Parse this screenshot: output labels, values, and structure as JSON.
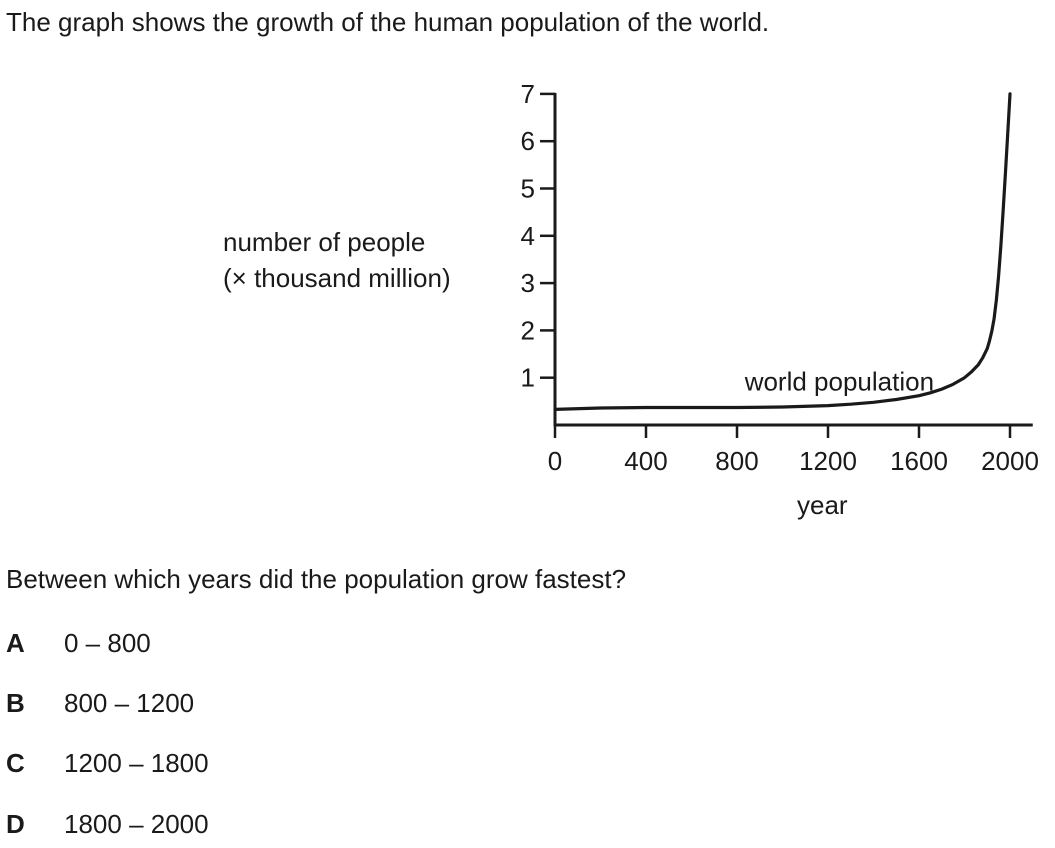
{
  "intro_text": "The graph shows the growth of the human population of the world.",
  "question_text": "Between which years did the population grow fastest?",
  "options": [
    {
      "letter": "A",
      "text": "0 – 800"
    },
    {
      "letter": "B",
      "text": "800 – 1200"
    },
    {
      "letter": "C",
      "text": "1200 – 1800"
    },
    {
      "letter": "D",
      "text": "1800 – 2000"
    }
  ],
  "chart_data": {
    "type": "line",
    "title": "",
    "xlabel": "year",
    "ylabel": [
      "number of people",
      "(× thousand million)"
    ],
    "xlim": [
      0,
      2100
    ],
    "ylim": [
      0,
      7
    ],
    "x_ticks": [
      0,
      400,
      800,
      1200,
      1600,
      2000
    ],
    "y_ticks": [
      1,
      2,
      3,
      4,
      5,
      6,
      7
    ],
    "grid": false,
    "annotations": [
      {
        "text": "world population",
        "x": 1250,
        "y": 0.9
      }
    ],
    "series": [
      {
        "x": [
          0,
          200,
          400,
          600,
          800,
          1000,
          1200,
          1300,
          1400,
          1500,
          1600,
          1650,
          1700,
          1750,
          1800,
          1830,
          1860,
          1880,
          1900,
          1910,
          1920,
          1930,
          1940,
          1950,
          1960,
          1970,
          1980,
          1990,
          2000
        ],
        "values": [
          0.33,
          0.36,
          0.37,
          0.37,
          0.37,
          0.38,
          0.41,
          0.44,
          0.48,
          0.54,
          0.62,
          0.68,
          0.76,
          0.86,
          1.0,
          1.12,
          1.27,
          1.42,
          1.62,
          1.78,
          1.98,
          2.25,
          2.65,
          3.15,
          3.8,
          4.55,
          5.35,
          6.15,
          7.0
        ]
      }
    ],
    "line_color": "#1a1a1a"
  }
}
